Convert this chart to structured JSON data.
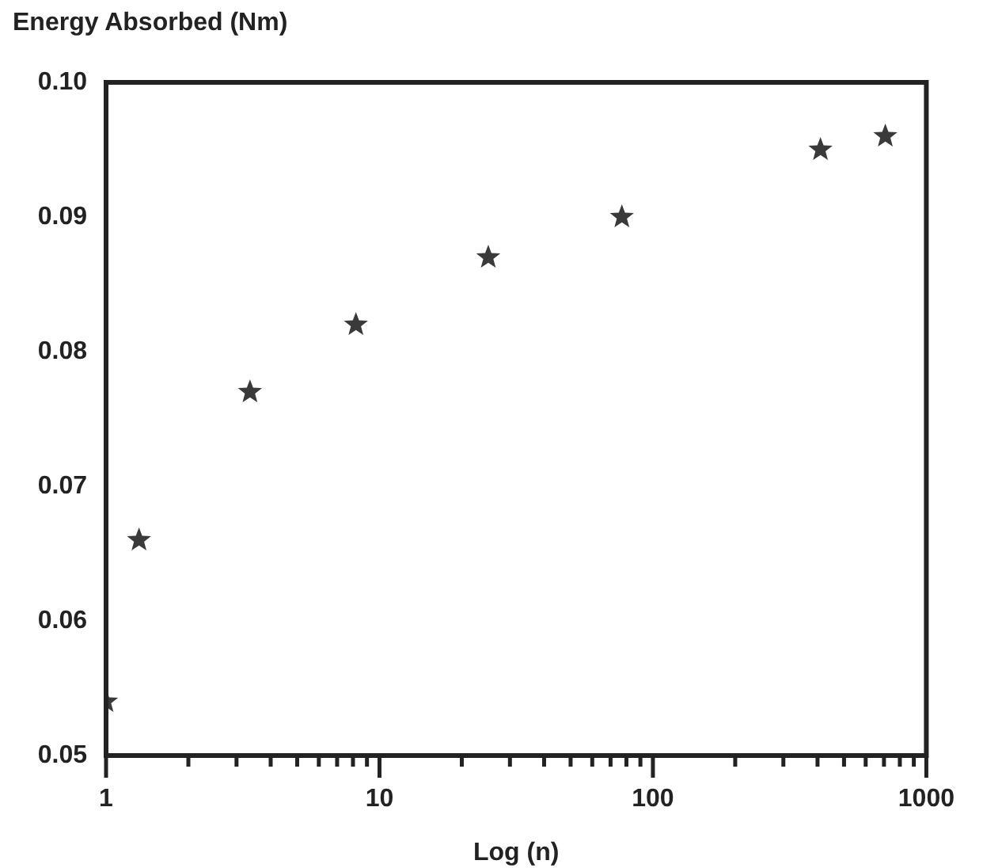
{
  "chart_data": {
    "type": "scatter",
    "xlabel": "Log (n)",
    "ylabel": "Energy Absorbed (Nm)",
    "log": "x",
    "marker": "star",
    "grid": false,
    "legend": false,
    "x": [
      1,
      1.32,
      3.36,
      8.2,
      25,
      77,
      410,
      708
    ],
    "series": [
      {
        "color": "#3a3a3a",
        "values": [
          0.054,
          0.066,
          0.077,
          0.082,
          0.087,
          0.09,
          0.095,
          0.096
        ]
      }
    ],
    "xlim": [
      1,
      1000
    ],
    "ylim": [
      0.05,
      0.1
    ],
    "xticks": [
      1,
      {
        "value": 2,
        "label": null
      },
      {
        "value": 3,
        "label": null
      },
      {
        "value": 4,
        "label": null
      },
      {
        "value": 5,
        "label": null
      },
      {
        "value": 6,
        "label": null
      },
      {
        "value": 7,
        "label": null
      },
      {
        "value": 8,
        "label": null
      },
      {
        "value": 9,
        "label": null
      },
      10,
      {
        "value": 20,
        "label": null
      },
      {
        "value": 30,
        "label": null
      },
      {
        "value": 40,
        "label": null
      },
      {
        "value": 50,
        "label": null
      },
      {
        "value": 60,
        "label": null
      },
      {
        "value": 70,
        "label": null
      },
      {
        "value": 80,
        "label": null
      },
      {
        "value": 90,
        "label": null
      },
      100,
      {
        "value": 200,
        "label": null
      },
      {
        "value": 300,
        "label": null
      },
      {
        "value": 400,
        "label": null
      },
      {
        "value": 500,
        "label": null
      },
      {
        "value": 600,
        "label": null
      },
      {
        "value": 700,
        "label": null
      },
      {
        "value": 800,
        "label": null
      },
      {
        "value": 900,
        "label": null
      },
      1000
    ],
    "yticks": [
      {
        "value": 0.05,
        "label": "0.05"
      },
      {
        "value": 0.06,
        "label": "0.06"
      },
      {
        "value": 0.07,
        "label": "0.07"
      },
      {
        "value": 0.08,
        "label": "0.08"
      },
      {
        "value": 0.09,
        "label": "0.09"
      },
      {
        "value": 0.1,
        "label": "0.10"
      }
    ]
  }
}
